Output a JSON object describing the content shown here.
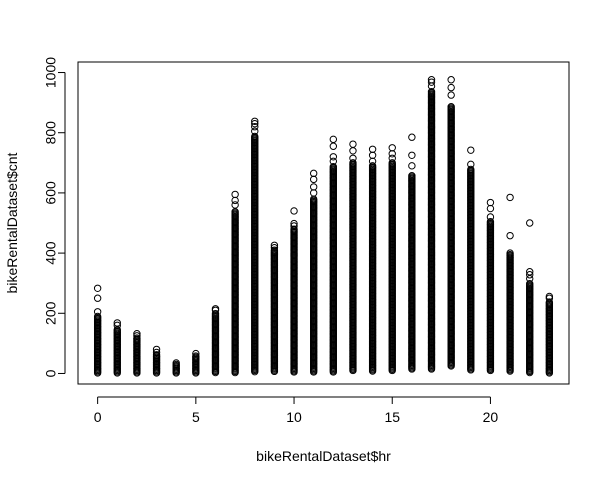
{
  "chart_data": {
    "type": "scatter",
    "title": "",
    "xlabel": "bikeRentalDataset$hr",
    "ylabel": "bikeRentalDataset$cnt",
    "xlim": [
      -1.0,
      24.0
    ],
    "ylim": [
      -35,
      1035
    ],
    "x_ticks": [
      0,
      5,
      10,
      15,
      20
    ],
    "y_ticks": [
      0,
      200,
      400,
      600,
      800,
      1000
    ],
    "grid": false,
    "legend": "none",
    "marker": "open-circle",
    "color": "#000000",
    "hours": [
      {
        "hr": 0,
        "min": 2,
        "max": 190,
        "outliers": [
          205,
          250,
          283
        ]
      },
      {
        "hr": 1,
        "min": 2,
        "max": 148,
        "outliers": [
          160,
          168
        ]
      },
      {
        "hr": 2,
        "min": 2,
        "max": 118,
        "outliers": [
          125,
          132
        ]
      },
      {
        "hr": 3,
        "min": 2,
        "max": 62,
        "outliers": [
          70,
          80
        ]
      },
      {
        "hr": 4,
        "min": 2,
        "max": 30,
        "outliers": [
          35
        ]
      },
      {
        "hr": 5,
        "min": 2,
        "max": 58,
        "outliers": [
          66
        ]
      },
      {
        "hr": 6,
        "min": 3,
        "max": 200,
        "outliers": [
          210,
          215
        ]
      },
      {
        "hr": 7,
        "min": 3,
        "max": 540,
        "outliers": [
          560,
          575,
          595
        ]
      },
      {
        "hr": 8,
        "min": 6,
        "max": 790,
        "outliers": [
          805,
          820,
          830,
          838
        ]
      },
      {
        "hr": 9,
        "min": 7,
        "max": 410,
        "outliers": [
          418,
          426
        ]
      },
      {
        "hr": 10,
        "min": 5,
        "max": 480,
        "outliers": [
          490,
          498,
          540
        ]
      },
      {
        "hr": 11,
        "min": 5,
        "max": 580,
        "outliers": [
          600,
          620,
          645,
          665
        ]
      },
      {
        "hr": 12,
        "min": 5,
        "max": 690,
        "outliers": [
          705,
          720,
          755,
          778
        ]
      },
      {
        "hr": 13,
        "min": 10,
        "max": 700,
        "outliers": [
          715,
          740,
          762
        ]
      },
      {
        "hr": 14,
        "min": 8,
        "max": 690,
        "outliers": [
          705,
          725,
          745
        ]
      },
      {
        "hr": 15,
        "min": 10,
        "max": 700,
        "outliers": [
          715,
          730,
          750
        ]
      },
      {
        "hr": 16,
        "min": 15,
        "max": 660,
        "outliers": [
          690,
          725,
          785
        ]
      },
      {
        "hr": 17,
        "min": 15,
        "max": 940,
        "outliers": [
          955,
          968,
          976
        ]
      },
      {
        "hr": 18,
        "min": 25,
        "max": 890,
        "outliers": [
          925,
          950,
          976
        ]
      },
      {
        "hr": 19,
        "min": 12,
        "max": 680,
        "outliers": [
          695,
          742
        ]
      },
      {
        "hr": 20,
        "min": 10,
        "max": 505,
        "outliers": [
          520,
          548,
          568
        ]
      },
      {
        "hr": 21,
        "min": 8,
        "max": 395,
        "outliers": [
          400,
          458,
          585
        ]
      },
      {
        "hr": 22,
        "min": 3,
        "max": 300,
        "outliers": [
          315,
          328,
          338,
          500
        ]
      },
      {
        "hr": 23,
        "min": 2,
        "max": 240,
        "outliers": [
          250,
          256
        ]
      }
    ]
  }
}
